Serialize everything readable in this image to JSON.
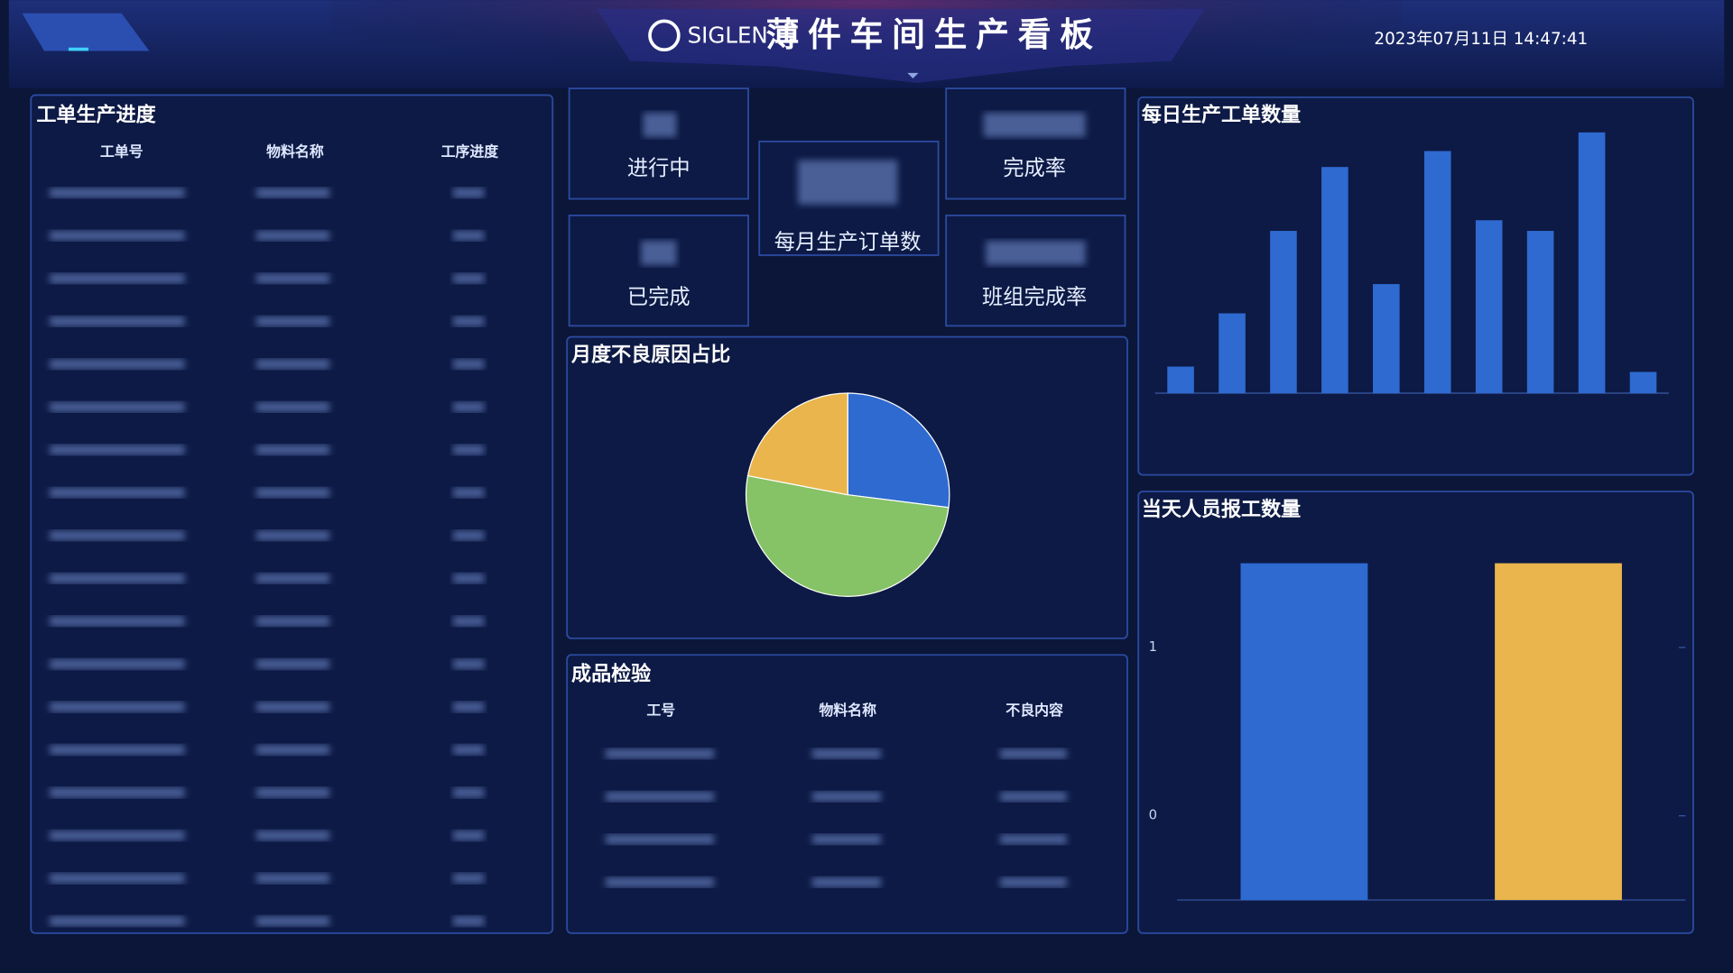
{
  "header": {
    "logo": "SIGLEN",
    "title": "薄件车间生产看板",
    "datetime": "2023年07月11日 14:47:41"
  },
  "work_order_progress": {
    "title": "工单生产进度",
    "columns": [
      "工单号",
      "物料名称",
      "工序进度"
    ]
  },
  "stats": {
    "in_progress": "进行中",
    "completion_rate": "完成率",
    "monthly_orders": "每月生产订单数",
    "completed": "已完成",
    "team_completion_rate": "班组完成率"
  },
  "inspection": {
    "title": "成品检验",
    "columns": [
      "工号",
      "物料名称",
      "不良内容"
    ]
  },
  "chart_data": [
    {
      "type": "bar",
      "title": "每日生产工单数量",
      "categories": [
        null,
        null,
        null,
        null,
        null,
        null,
        null,
        null,
        null,
        null
      ],
      "values": [
        10,
        30,
        61,
        85,
        41,
        91,
        65,
        61,
        98,
        8
      ],
      "color": "#2e6ad0",
      "ylim": [
        0,
        100
      ]
    },
    {
      "type": "pie",
      "title": "月度不良原因占比",
      "values": [
        27,
        51,
        22
      ],
      "colors": [
        "#2e6ad0",
        "#86c266",
        "#e9b54c"
      ]
    },
    {
      "type": "bar",
      "title": "当天人员报工数量",
      "categories": [
        null,
        null
      ],
      "values": [
        1.5,
        1.5
      ],
      "colors": [
        "#2e6ad0",
        "#e9b54c"
      ],
      "ylim": [
        -0.5,
        1.5
      ],
      "yticks": [
        0,
        1
      ]
    }
  ]
}
